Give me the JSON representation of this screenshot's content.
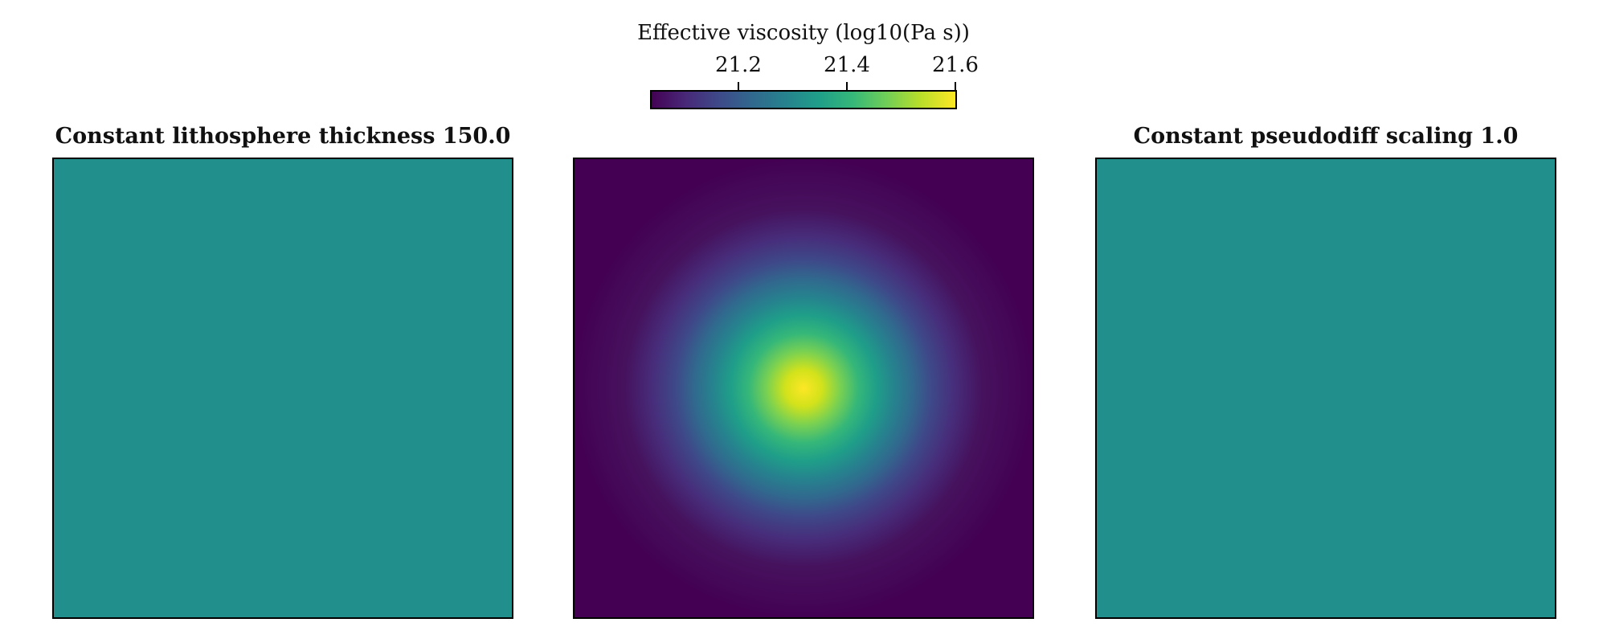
{
  "colorbar": {
    "label": "Effective viscosity (log10(Pa s))",
    "ticks": [
      21.2,
      21.4,
      21.6
    ],
    "tick_labels": [
      "21.2",
      "21.4",
      "21.6"
    ],
    "range": [
      21.04,
      21.605
    ],
    "colormap": "viridis"
  },
  "chart_data": [
    {
      "type": "heatmap",
      "title": "Constant lithosphere thickness 150.0",
      "value_uniform": 21.32,
      "fill_color": "#21908d"
    },
    {
      "type": "heatmap",
      "title": "",
      "background_value": 21.04,
      "peak_value": 21.6,
      "pattern": "radial gaussian centered",
      "colormap": "viridis"
    },
    {
      "type": "heatmap",
      "title": "Constant pseudodiff scaling 1.0",
      "value_uniform": 21.32,
      "fill_color": "#21908d"
    }
  ]
}
